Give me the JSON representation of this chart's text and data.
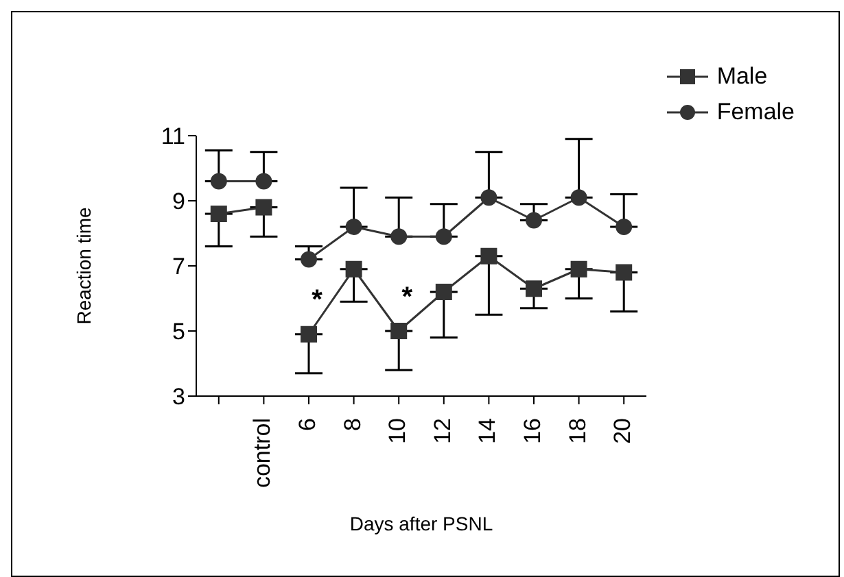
{
  "chart_data": {
    "type": "line",
    "xlabel": "Days after PSNL",
    "ylabel": "Reaction time",
    "categories": [
      null,
      "control",
      "6",
      "8",
      "10",
      "12",
      "14",
      "16",
      "18",
      "20"
    ],
    "ylim": [
      3,
      11
    ],
    "yticks": [
      3,
      5,
      7,
      9,
      11
    ],
    "grid": false,
    "legend": "top right",
    "annotations": [
      {
        "text": "*",
        "x": "6",
        "y": 4.9
      },
      {
        "text": "*",
        "x": "10",
        "y": 5.0
      }
    ],
    "series": [
      {
        "name": "Male",
        "color": "#333333",
        "marker": "square",
        "values": [
          null,
          null,
          4.9,
          6.9,
          5.0,
          6.2,
          7.3,
          6.3,
          6.9,
          6.8
        ],
        "errors": [
          null,
          null,
          [
            3.7,
            4.9
          ],
          [
            5.9,
            6.9
          ],
          [
            3.8,
            5.0
          ],
          [
            4.8,
            6.2
          ],
          [
            5.5,
            7.3
          ],
          [
            5.7,
            6.3
          ],
          [
            6.0,
            6.9
          ],
          [
            5.6,
            6.8
          ]
        ]
      },
      {
        "color": "#333333",
        "marker": "square",
        "values": [
          8.6,
          8.8,
          null,
          null,
          null,
          null,
          null,
          null,
          null,
          null
        ],
        "errors": [
          [
            7.6,
            8.6
          ],
          [
            7.9,
            8.8
          ],
          null,
          null,
          null,
          null,
          null,
          null,
          null,
          null
        ]
      },
      {
        "name": "Female",
        "color": "#333333",
        "marker": "circle",
        "values": [
          null,
          null,
          7.2,
          8.2,
          7.9,
          7.9,
          9.1,
          8.4,
          9.1,
          8.2
        ],
        "errors": [
          null,
          null,
          [
            7.2,
            7.6
          ],
          [
            8.2,
            9.4
          ],
          [
            7.9,
            9.1
          ],
          [
            7.9,
            8.9
          ],
          [
            9.1,
            10.5
          ],
          [
            8.4,
            8.9
          ],
          [
            9.1,
            10.9
          ],
          [
            8.2,
            9.2
          ]
        ]
      },
      {
        "color": "#333333",
        "marker": "circle",
        "values": [
          9.6,
          9.6,
          null,
          null,
          null,
          null,
          null,
          null,
          null,
          null
        ],
        "errors": [
          [
            9.6,
            10.55
          ],
          [
            9.6,
            10.5
          ],
          null,
          null,
          null,
          null,
          null,
          null,
          null,
          null
        ]
      }
    ]
  }
}
